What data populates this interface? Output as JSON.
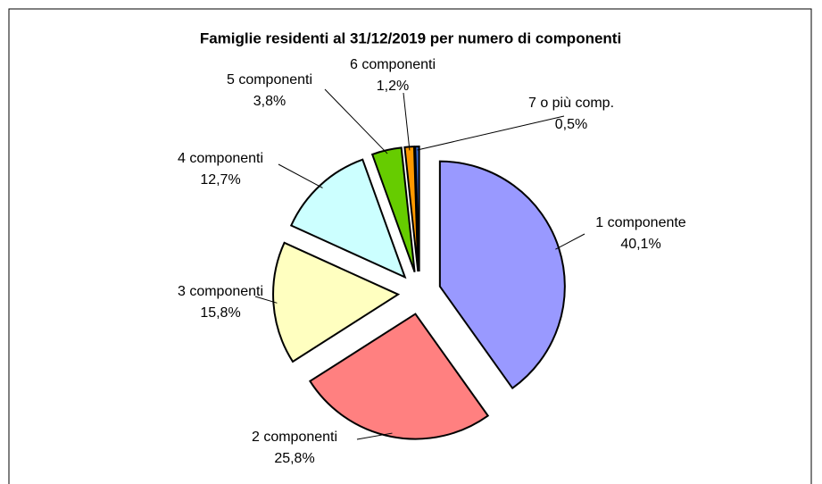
{
  "chart_data": {
    "type": "pie",
    "title": "Famiglie residenti al 31/12/2019 per numero di componenti",
    "categories": [
      "1 componente",
      "2 componenti",
      "3 componenti",
      "4 componenti",
      "5 componenti",
      "6 componenti",
      "7 o più comp."
    ],
    "values": [
      40.1,
      25.8,
      15.8,
      12.7,
      3.8,
      1.2,
      0.5
    ],
    "value_labels": [
      "40,1%",
      "25,8%",
      "15,8%",
      "12,7%",
      "3,8%",
      "1,2%",
      "0,5%"
    ],
    "colors": [
      "#9999ff",
      "#ff8080",
      "#ffffc0",
      "#ccffff",
      "#66cc00",
      "#ff9900",
      "#3366cc"
    ]
  }
}
